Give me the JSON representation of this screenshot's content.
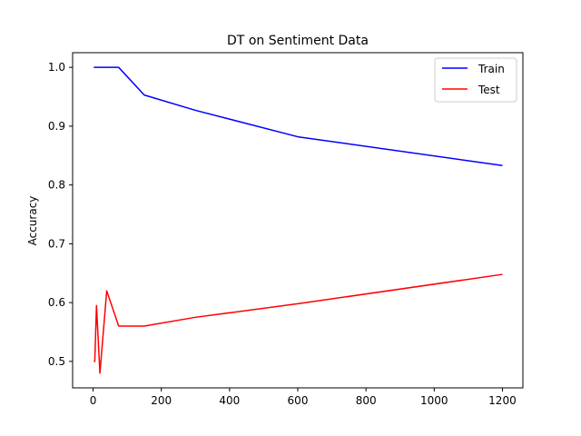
{
  "chart_data": {
    "type": "line",
    "title": "DT on Sentiment Data",
    "xlabel": "",
    "ylabel": "Accuracy",
    "xlim": [
      -60,
      1260
    ],
    "ylim": [
      0.455,
      1.025
    ],
    "xticks": [
      0,
      200,
      400,
      600,
      800,
      1000,
      1200
    ],
    "yticks": [
      0.5,
      0.6,
      0.7,
      0.8,
      0.9,
      1.0
    ],
    "ytick_labels": [
      "0.5",
      "0.6",
      "0.7",
      "0.8",
      "0.9",
      "1.0"
    ],
    "grid": false,
    "legend_position": "top-right",
    "x": [
      2,
      5,
      10,
      20,
      40,
      75,
      150,
      300,
      600,
      1200
    ],
    "series": [
      {
        "name": "Train",
        "color": "#0000ff",
        "values": [
          1.0,
          1.0,
          1.0,
          1.0,
          1.0,
          1.0,
          0.953,
          0.927,
          0.882,
          0.833
        ]
      },
      {
        "name": "Test",
        "color": "#ff0000",
        "values": [
          0.5,
          0.5,
          0.595,
          0.48,
          0.62,
          0.56,
          0.56,
          0.575,
          0.598,
          0.648
        ]
      }
    ]
  }
}
